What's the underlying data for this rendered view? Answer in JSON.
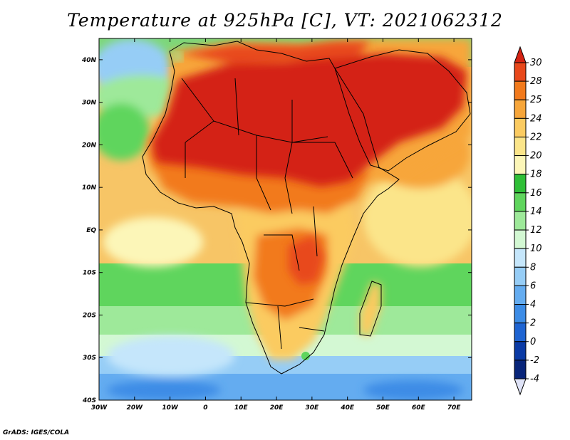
{
  "title": "Temperature at 925hPa [C], VT: 2021062312",
  "credit": "GrADS: IGES/COLA",
  "map": {
    "lon_range": [
      -30,
      75
    ],
    "lat_range": [
      -40,
      45
    ],
    "lon_ticks": [
      {
        "value": -30,
        "label": "30W"
      },
      {
        "value": -20,
        "label": "20W"
      },
      {
        "value": -10,
        "label": "10W"
      },
      {
        "value": 0,
        "label": "0"
      },
      {
        "value": 10,
        "label": "10E"
      },
      {
        "value": 20,
        "label": "20E"
      },
      {
        "value": 30,
        "label": "30E"
      },
      {
        "value": 40,
        "label": "40E"
      },
      {
        "value": 50,
        "label": "50E"
      },
      {
        "value": 60,
        "label": "60E"
      },
      {
        "value": 70,
        "label": "70E"
      }
    ],
    "lat_ticks": [
      {
        "value": 40,
        "label": "40N"
      },
      {
        "value": 30,
        "label": "30N"
      },
      {
        "value": 20,
        "label": "20N"
      },
      {
        "value": 10,
        "label": "10N"
      },
      {
        "value": 0,
        "label": "EQ"
      },
      {
        "value": -10,
        "label": "10S"
      },
      {
        "value": -20,
        "label": "20S"
      },
      {
        "value": -30,
        "label": "30S"
      },
      {
        "value": -40,
        "label": "40S"
      }
    ]
  },
  "colorbar": {
    "levels": [
      "30",
      "28",
      "25",
      "24",
      "22",
      "20",
      "18",
      "16",
      "14",
      "12",
      "10",
      "8",
      "6",
      "4",
      "2",
      "0",
      "-2",
      "-4"
    ],
    "colors": [
      "#d42313",
      "#e8481b",
      "#f27a1c",
      "#f7a63a",
      "#fbcb61",
      "#fbe58a",
      "#fcf6b8",
      "#2fbf37",
      "#5fd55d",
      "#9ee99a",
      "#d3f8d3",
      "#c5e6fb",
      "#96cdf6",
      "#64acf0",
      "#3c8ce6",
      "#1e64d2",
      "#0a3aa5",
      "#08257a",
      "#06155a"
    ]
  }
}
